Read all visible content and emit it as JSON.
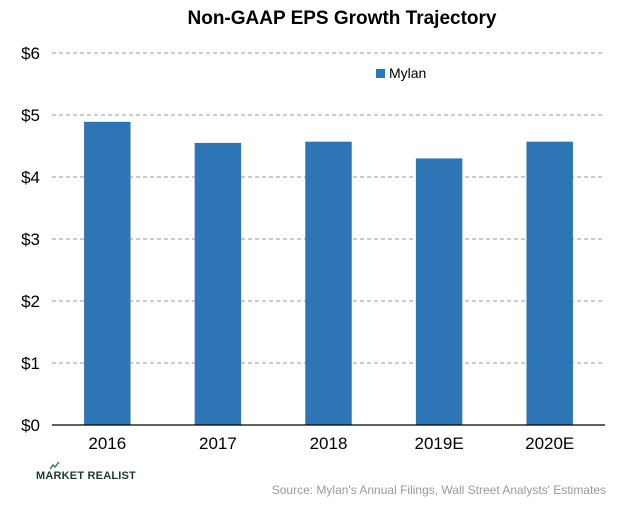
{
  "chart_data": {
    "type": "bar",
    "title": "Non-GAAP  EPS Growth Trajectory",
    "categories": [
      "2016",
      "2017",
      "2018",
      "2019E",
      "2020E"
    ],
    "series": [
      {
        "name": "Mylan",
        "values": [
          4.89,
          4.55,
          4.57,
          4.3,
          4.57
        ]
      }
    ],
    "ylim": [
      0,
      6
    ],
    "yticks": [
      0,
      1,
      2,
      3,
      4,
      5,
      6
    ],
    "ytick_labels": [
      "$0",
      "$1",
      "$2",
      "$3",
      "$4",
      "$5",
      "$6"
    ],
    "xlabel": "",
    "ylabel": "",
    "grid": true,
    "legend_position": "top-right",
    "bar_color": "#2e75b6"
  },
  "footer": {
    "logo_text": "MARKET REALIST",
    "source": "Source: Mylan's Annual Filings, Wall Street Analysts' Estimates"
  }
}
